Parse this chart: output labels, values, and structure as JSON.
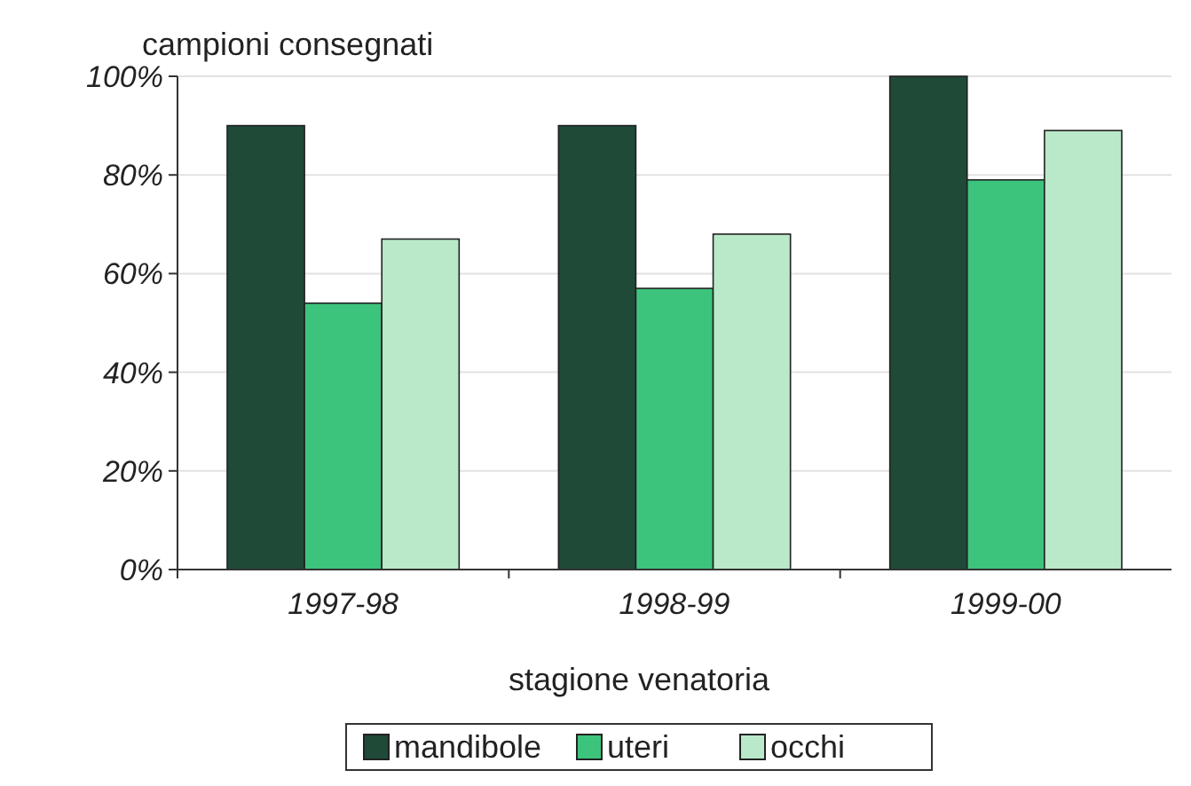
{
  "chart_data": {
    "type": "bar",
    "ylabel": "campioni consegnati",
    "xlabel": "stagione venatoria",
    "categories": [
      "1997-98",
      "1998-99",
      "1999-00"
    ],
    "series": [
      {
        "name": "mandibole",
        "color": "#1f4a38",
        "values": [
          90,
          90,
          100
        ]
      },
      {
        "name": "uteri",
        "color": "#3dc47c",
        "values": [
          54,
          57,
          79
        ]
      },
      {
        "name": "occhi",
        "color": "#b9e9c9",
        "values": [
          67,
          68,
          89
        ]
      }
    ],
    "ylim": [
      0,
      100
    ],
    "yticks": [
      {
        "value": 0,
        "label": "0%"
      },
      {
        "value": 20,
        "label": "20%"
      },
      {
        "value": 40,
        "label": "40%"
      },
      {
        "value": 60,
        "label": "60%"
      },
      {
        "value": 80,
        "label": "80%"
      },
      {
        "value": 100,
        "label": "100%"
      }
    ],
    "grid": "y",
    "legend": "bottom"
  }
}
